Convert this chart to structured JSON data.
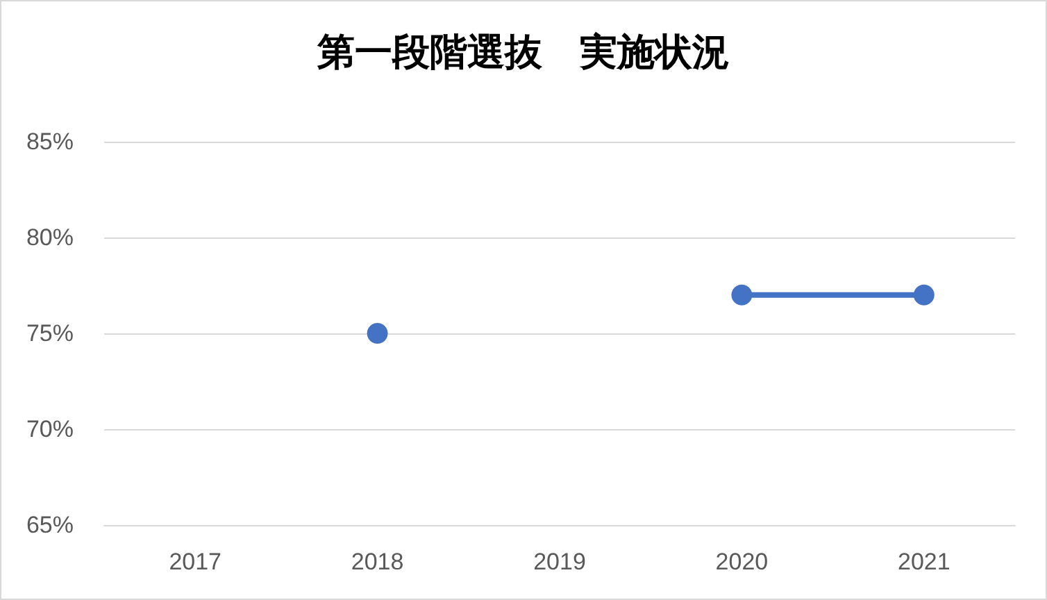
{
  "chart_data": {
    "type": "line",
    "title": "第一段階選抜　実施状況",
    "categories": [
      "2017",
      "2018",
      "2019",
      "2020",
      "2021"
    ],
    "series": [
      {
        "color": "#4472c4",
        "values": [
          null,
          75,
          null,
          77,
          77
        ]
      }
    ],
    "ylim": [
      65,
      85
    ],
    "yticks": [
      {
        "value": 65,
        "label": "65%"
      },
      {
        "value": 70,
        "label": "70%"
      },
      {
        "value": 75,
        "label": "75%"
      },
      {
        "value": 80,
        "label": "80%"
      },
      {
        "value": 85,
        "label": "85%"
      }
    ],
    "grid": "y",
    "marker": "circle",
    "line_style": "solid"
  }
}
